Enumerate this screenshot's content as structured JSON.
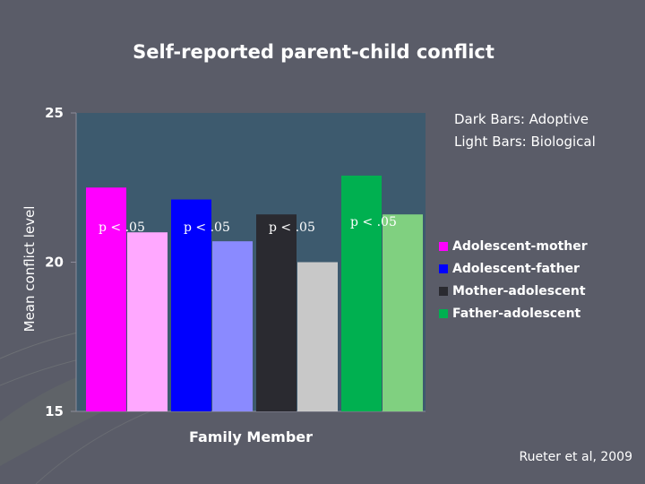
{
  "slide": {
    "title": "Self-reported parent-child conflict",
    "note_line1": "Dark Bars: Adoptive",
    "note_line2": "Light Bars: Biological",
    "citation": "Rueter et al, 2009"
  },
  "chart_data": {
    "type": "bar",
    "title": "",
    "xlabel": "Family Member",
    "ylabel": "Mean conflict level",
    "ylim": [
      15,
      25
    ],
    "yticks": [
      15,
      20,
      25
    ],
    "grid": false,
    "legend_position": "right",
    "groups": [
      {
        "name": "Adolescent-mother",
        "annotation": "p < .05",
        "dark_color": "#ff00ff",
        "light_color": "#ffa8ff",
        "adoptive": 22.5,
        "biological": 21.0
      },
      {
        "name": "Adolescent-father",
        "annotation": "p < .05",
        "dark_color": "#0000ff",
        "light_color": "#8a8aff",
        "adoptive": 22.1,
        "biological": 20.7
      },
      {
        "name": "Mother-adolescent",
        "annotation": "p < .05",
        "dark_color": "#2a2a30",
        "light_color": "#c8c8c8",
        "adoptive": 21.6,
        "biological": 20.0
      },
      {
        "name": "Father-adolescent",
        "annotation": "p < .05",
        "dark_color": "#00b050",
        "light_color": "#80d080",
        "adoptive": 22.9,
        "biological": 21.6
      }
    ],
    "colors": {
      "plot_background": "#3d5a6e",
      "slide_background": "#5a5c68",
      "axis": "#8c8c9a",
      "text": "#ffffff"
    }
  }
}
